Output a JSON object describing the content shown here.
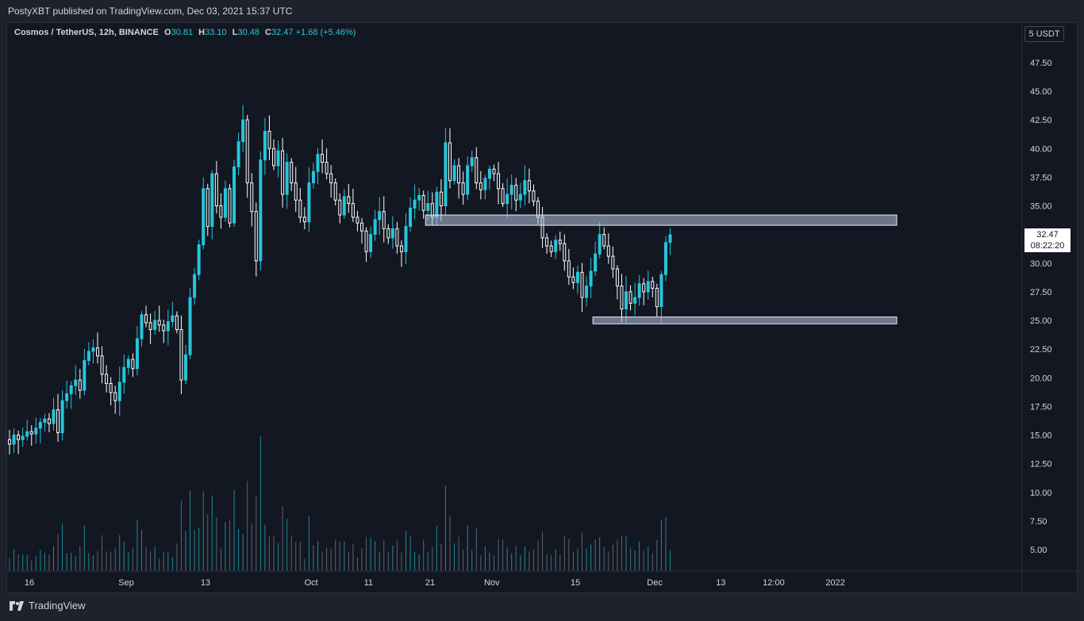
{
  "header": {
    "published": "PostyXBT published on TradingView.com, Dec 03, 2021 15:37 UTC"
  },
  "legend": {
    "symbol": "Cosmos / TetherUS, 12h, BINANCE",
    "open_key": "O",
    "open": "30.81",
    "high_key": "H",
    "high": "33.10",
    "low_key": "L",
    "low": "30.48",
    "close_key": "C",
    "close": "32.47",
    "change": "+1.68 (+5.46%)"
  },
  "price_scale": {
    "currency": "5 USDT",
    "last_price": "32.47",
    "countdown": "08:22:20"
  },
  "footer": {
    "brand": "TradingView"
  },
  "colors": {
    "up": "#26c6da",
    "down": "#ffffff",
    "zone": "#b8c4e0",
    "bg": "#131722"
  },
  "chart_data": {
    "type": "candlestick",
    "title": "Cosmos / TetherUS, 12h, BINANCE",
    "ylim": [
      2.5,
      50
    ],
    "y_ticks": [
      "47.50",
      "45.00",
      "42.50",
      "40.00",
      "37.50",
      "35.00",
      "32.50",
      "30.00",
      "27.50",
      "25.00",
      "22.50",
      "20.00",
      "17.50",
      "15.00",
      "12.50",
      "10.00",
      "7.50",
      "5.00"
    ],
    "y_tick_values": [
      47.5,
      45,
      42.5,
      40,
      37.5,
      35,
      32.5,
      30,
      27.5,
      25,
      22.5,
      20,
      17.5,
      15,
      12.5,
      10,
      7.5,
      5
    ],
    "x_ticks": [
      "16",
      "Sep",
      "13",
      "Oct",
      "11",
      "21",
      "Nov",
      "15",
      "Dec",
      "13",
      "12:00",
      "2022"
    ],
    "x_tick_bars": [
      4.5,
      26.5,
      44.5,
      68.5,
      81.5,
      95.5,
      109.5,
      128.5,
      146.5,
      161.5,
      173.5,
      187.5
    ],
    "closes": [
      14.2,
      15.0,
      14.6,
      14.9,
      15.3,
      15.1,
      15.6,
      16.1,
      16.4,
      16.0,
      17.2,
      15.2,
      18.0,
      18.6,
      19.3,
      19.8,
      18.9,
      21.5,
      22.3,
      22.6,
      21.9,
      20.3,
      19.5,
      18.7,
      18.0,
      19.6,
      20.9,
      21.6,
      20.8,
      23.4,
      25.5,
      24.8,
      24.2,
      25.0,
      24.6,
      24.1,
      24.9,
      25.4,
      24.2,
      19.8,
      22.0,
      27.0,
      29.0,
      31.6,
      36.5,
      33.2,
      37.8,
      35.0,
      34.0,
      36.5,
      33.5,
      38.4,
      40.6,
      42.5,
      37.0,
      34.5,
      30.2,
      39.0,
      41.5,
      40.0,
      38.5,
      39.8,
      36.0,
      38.8,
      37.0,
      35.5,
      34.0,
      33.6,
      37.0,
      38.0,
      39.5,
      38.8,
      37.8,
      37.0,
      35.5,
      34.2,
      35.8,
      35.2,
      34.0,
      33.5,
      32.8,
      31.0,
      32.5,
      33.8,
      34.5,
      33.0,
      32.2,
      33.0,
      31.5,
      31.0,
      33.2,
      34.8,
      35.5,
      35.9,
      34.6,
      35.2,
      34.0,
      36.2,
      35.0,
      40.5,
      37.2,
      38.5,
      37.0,
      36.0,
      38.5,
      39.2,
      37.0,
      36.4,
      37.4,
      38.2,
      37.8,
      36.5,
      35.2,
      36.0,
      36.8,
      35.5,
      36.0,
      37.2,
      36.3,
      35.4,
      34.0,
      32.2,
      31.5,
      31.0,
      32.0,
      31.7,
      30.2,
      28.8,
      28.3,
      29.2,
      27.0,
      28.0,
      29.3,
      30.8,
      32.5,
      31.5,
      30.6,
      29.5,
      28.0,
      26.0,
      27.5,
      26.5,
      27.0,
      28.2,
      27.5,
      28.4,
      27.8,
      26.2,
      29.0,
      31.8,
      32.47
    ],
    "zones": [
      {
        "top": 34.2,
        "bottom": 33.3,
        "from_bar": 95,
        "to_extend": true
      },
      {
        "top": 25.3,
        "bottom": 24.7,
        "from_bar": 133,
        "to_extend": true
      }
    ]
  }
}
